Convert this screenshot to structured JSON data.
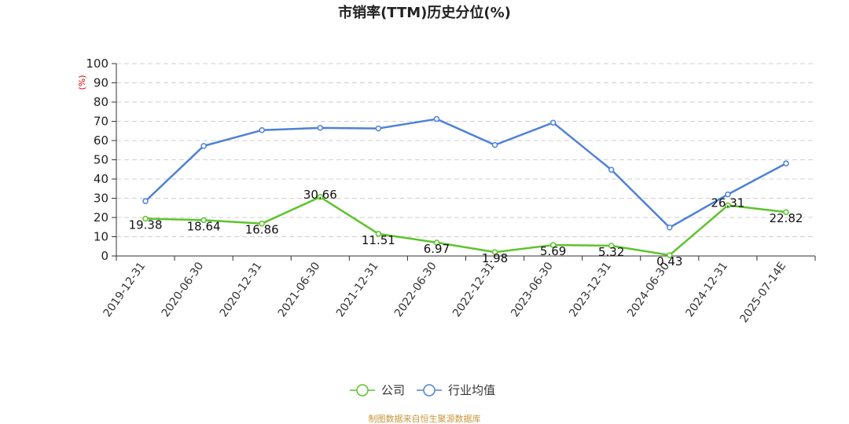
{
  "chart_data": {
    "type": "line",
    "title": "市销率(TTM)历史分位(%)",
    "ylabel": "(%)",
    "xlabel": "",
    "ylim": [
      0,
      100
    ],
    "yticks": [
      0,
      10,
      20,
      30,
      40,
      50,
      60,
      70,
      80,
      90,
      100
    ],
    "grid": true,
    "legend_position": "bottom-center",
    "categories": [
      "2019-12-31",
      "2020-06-30",
      "2020-12-31",
      "2021-06-30",
      "2021-12-31",
      "2022-06-30",
      "2022-12-31",
      "2023-06-30",
      "2023-12-31",
      "2024-06-30",
      "2024-12-31",
      "2025-07-14E"
    ],
    "series": [
      {
        "name": "公司",
        "color": "#5cc42c",
        "values": [
          19.38,
          18.64,
          16.86,
          30.66,
          11.51,
          6.97,
          1.98,
          5.69,
          5.32,
          0.43,
          26.31,
          22.82
        ],
        "labels": [
          "19.38",
          "18.64",
          "16.86",
          "30.66",
          "11.51",
          "6.97",
          "1.98",
          "5.69",
          "5.32",
          "0.43",
          "26.31",
          "22.82"
        ]
      },
      {
        "name": "行业均值",
        "color": "#4f81d9",
        "values": [
          28.5,
          57.2,
          65.4,
          66.6,
          66.3,
          71.2,
          57.7,
          69.3,
          44.8,
          14.8,
          32.0,
          48.1
        ]
      }
    ],
    "source_note": "制图数据来自恒生聚源数据库"
  }
}
